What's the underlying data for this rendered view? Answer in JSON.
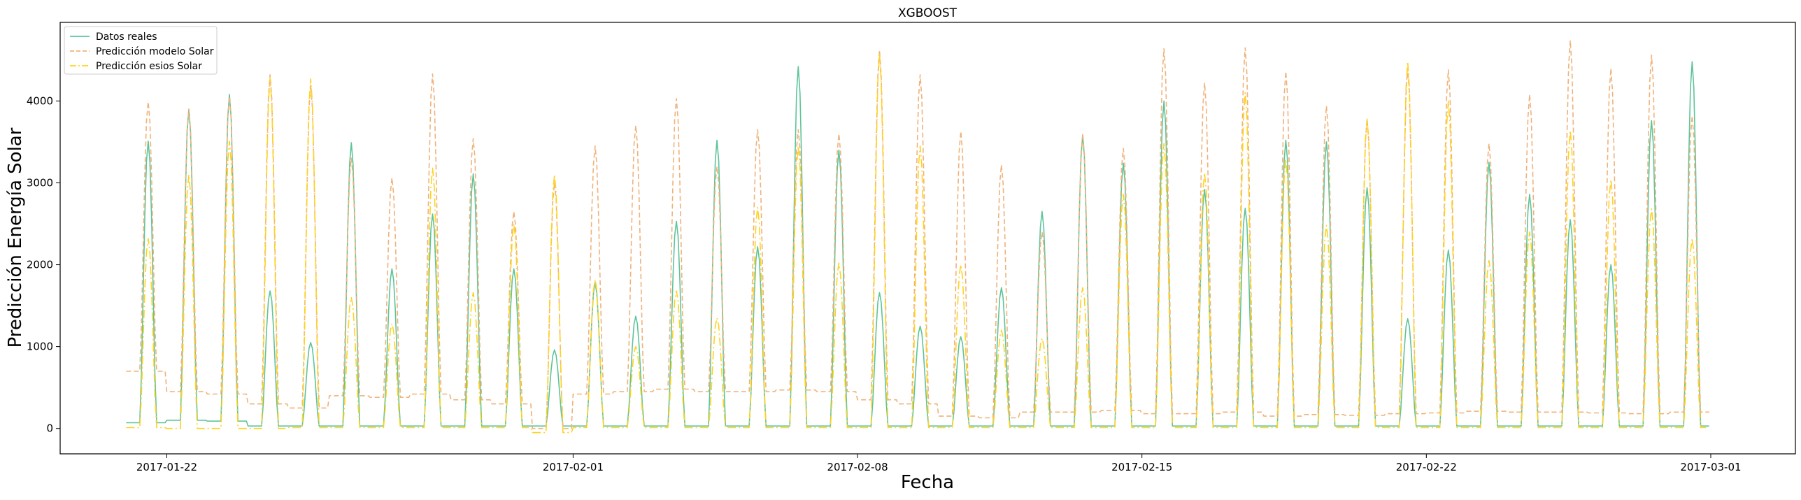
{
  "chart_data": {
    "type": "line",
    "title": "XGBOOST",
    "xlabel": "Fecha",
    "ylabel": "Predicción Energía Solar",
    "xlim": [
      "2017-01-19T09:00",
      "2017-03-03T02:00"
    ],
    "ylim": [
      -310,
      4960
    ],
    "x_ticks": [
      "2017-01-22",
      "2017-02-01",
      "2017-02-08",
      "2017-02-15",
      "2017-02-22",
      "2017-03-01"
    ],
    "y_ticks": [
      0,
      1000,
      2000,
      3000,
      4000
    ],
    "legend_location": "upper-left",
    "grid": false,
    "x_start": "2017-01-21",
    "x_end": "2017-02-28",
    "series": [
      {
        "name": "Datos reales",
        "color": "#5ec49a",
        "line_style": "solid",
        "daily_peak": [
          3510,
          3900,
          4080,
          1680,
          1050,
          3490,
          1950,
          2620,
          3110,
          1950,
          960,
          1780,
          1370,
          2530,
          3520,
          2220,
          4420,
          3400,
          1660,
          1250,
          1120,
          1720,
          2650,
          3580,
          3240,
          4000,
          2920,
          2690,
          3520,
          3500,
          2940,
          1340,
          2180,
          3250,
          2860,
          2550,
          2000,
          3760,
          4480
        ],
        "daily_night": [
          70,
          100,
          90,
          30,
          30,
          30,
          30,
          30,
          30,
          30,
          30,
          30,
          30,
          30,
          30,
          30,
          30,
          30,
          30,
          30,
          30,
          30,
          30,
          30,
          30,
          30,
          30,
          30,
          30,
          30,
          30,
          30,
          30,
          30,
          30,
          30,
          30,
          30,
          30
        ]
      },
      {
        "name": "Predicción modelo Solar",
        "color": "#f0b27a",
        "line_style": "dashed",
        "daily_peak": [
          3990,
          3900,
          4050,
          4320,
          4200,
          3300,
          3060,
          4330,
          3540,
          2650,
          3000,
          3450,
          3700,
          4030,
          3200,
          3650,
          3650,
          3600,
          4620,
          4320,
          3630,
          3220,
          2400,
          3600,
          3420,
          4640,
          4220,
          4650,
          4360,
          3940,
          3780,
          4400,
          4380,
          3480,
          4080,
          4740,
          4400,
          4560,
          3820
        ],
        "daily_night": [
          700,
          450,
          420,
          300,
          250,
          400,
          380,
          420,
          350,
          300,
          0,
          420,
          450,
          480,
          450,
          450,
          470,
          450,
          350,
          300,
          150,
          130,
          200,
          200,
          220,
          180,
          180,
          200,
          150,
          170,
          160,
          180,
          190,
          210,
          200,
          200,
          190,
          180,
          200
        ]
      },
      {
        "name": "Predicción esios Solar",
        "color": "#ffd21f",
        "line_style": "dashdot",
        "daily_peak": [
          2320,
          3100,
          3510,
          4280,
          4270,
          1600,
          1280,
          3180,
          1660,
          2500,
          3100,
          1820,
          1000,
          1680,
          1350,
          2700,
          3450,
          2020,
          4570,
          3450,
          2000,
          1200,
          1100,
          1720,
          2860,
          3480,
          3120,
          4100,
          3290,
          2480,
          3780,
          4480,
          4000,
          2050,
          2400,
          3640,
          3040,
          2680,
          2320
        ],
        "daily_night": [
          10,
          0,
          0,
          0,
          10,
          10,
          10,
          10,
          10,
          10,
          -50,
          10,
          10,
          10,
          10,
          10,
          10,
          10,
          10,
          10,
          10,
          10,
          10,
          10,
          10,
          10,
          10,
          10,
          10,
          10,
          10,
          10,
          10,
          10,
          10,
          10,
          10,
          10,
          10
        ]
      }
    ]
  }
}
